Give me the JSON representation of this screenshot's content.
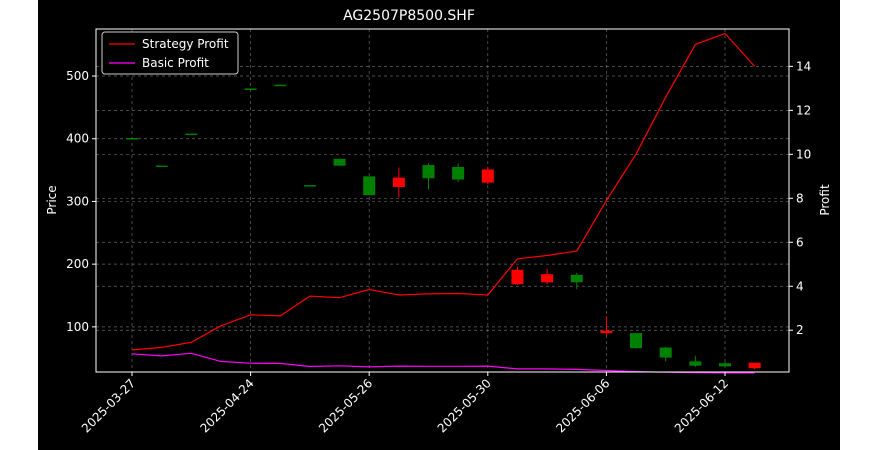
{
  "chart_data": {
    "type": "candlestick+line",
    "title": "AG2507P8500.SHF",
    "xlabel": "",
    "ylabel_left": "Price",
    "ylabel_right": "Profit",
    "grid": true,
    "legend_position": "top-left",
    "x_tick_labels": [
      "2025-03-27",
      "2025-04-24",
      "2025-05-26",
      "2025-05-30",
      "2025-06-06",
      "2025-06-12"
    ],
    "x_tick_index": [
      0,
      4,
      8,
      12,
      16,
      20
    ],
    "ylim_left": [
      28,
      575
    ],
    "yticks_left": [
      100,
      200,
      300,
      400,
      500
    ],
    "ylim_right": [
      0.1,
      15.7
    ],
    "yticks_right": [
      2,
      4,
      6,
      8,
      10,
      12,
      14
    ],
    "colors": {
      "up": "#008000",
      "down": "#ff0000",
      "strategy": "#ff0000",
      "basic": "#ff00ff",
      "background": "#000000",
      "grid": "#808080"
    },
    "candles": [
      {
        "open": 400,
        "high": 400,
        "low": 400,
        "close": 400
      },
      {
        "open": 356,
        "high": 356,
        "low": 356,
        "close": 356
      },
      {
        "open": 407,
        "high": 407,
        "low": 407,
        "close": 407
      },
      null,
      {
        "open": 479,
        "high": 479,
        "low": 479,
        "close": 479
      },
      {
        "open": 485,
        "high": 485,
        "low": 485,
        "close": 485
      },
      {
        "open": 325,
        "high": 325,
        "low": 325,
        "close": 325
      },
      {
        "open": 357,
        "high": 368,
        "low": 357,
        "close": 368
      },
      {
        "open": 310,
        "high": 340,
        "low": 310,
        "close": 340
      },
      {
        "open": 338,
        "high": 354,
        "low": 306,
        "close": 323
      },
      {
        "open": 337,
        "high": 361,
        "low": 319,
        "close": 358
      },
      {
        "open": 335,
        "high": 361,
        "low": 331,
        "close": 355
      },
      {
        "open": 351,
        "high": 355,
        "low": 328,
        "close": 330
      },
      {
        "open": 191,
        "high": 196,
        "low": 167,
        "close": 168
      },
      {
        "open": 184,
        "high": 193,
        "low": 168,
        "close": 171
      },
      {
        "open": 171,
        "high": 186,
        "low": 160,
        "close": 183
      },
      {
        "open": 94,
        "high": 117,
        "low": 86,
        "close": 90
      },
      {
        "open": 66,
        "high": 90,
        "low": 65,
        "close": 90
      },
      {
        "open": 51,
        "high": 68,
        "low": 45,
        "close": 67
      },
      {
        "open": 38,
        "high": 54,
        "low": 36,
        "close": 45
      },
      {
        "open": 37,
        "high": 44,
        "low": 35,
        "close": 42
      },
      {
        "open": 43,
        "high": 43,
        "low": 32,
        "close": 34
      }
    ],
    "series": [
      {
        "name": "Strategy Profit",
        "x": [
          0,
          1,
          2,
          3,
          4,
          5,
          6,
          7,
          8,
          9,
          10,
          11,
          12,
          13,
          14,
          15,
          16,
          17,
          18,
          19,
          20,
          21
        ],
        "values": [
          1.1,
          1.22,
          1.45,
          2.2,
          2.7,
          2.65,
          3.55,
          3.48,
          3.85,
          3.6,
          3.65,
          3.67,
          3.6,
          5.25,
          5.4,
          5.6,
          7.9,
          10.0,
          12.6,
          15.0,
          15.5,
          14.0
        ]
      },
      {
        "name": "Basic Profit",
        "x": [
          0,
          1,
          2,
          3,
          4,
          5,
          6,
          7,
          8,
          9,
          10,
          11,
          12,
          13,
          14,
          15,
          16,
          17,
          18,
          19,
          20,
          21
        ],
        "values": [
          0.93,
          0.83,
          0.95,
          0.58,
          0.5,
          0.49,
          0.35,
          0.38,
          0.33,
          0.37,
          0.36,
          0.36,
          0.37,
          0.24,
          0.24,
          0.22,
          0.17,
          0.12,
          0.09,
          0.07,
          0.06,
          0.06
        ]
      }
    ]
  }
}
